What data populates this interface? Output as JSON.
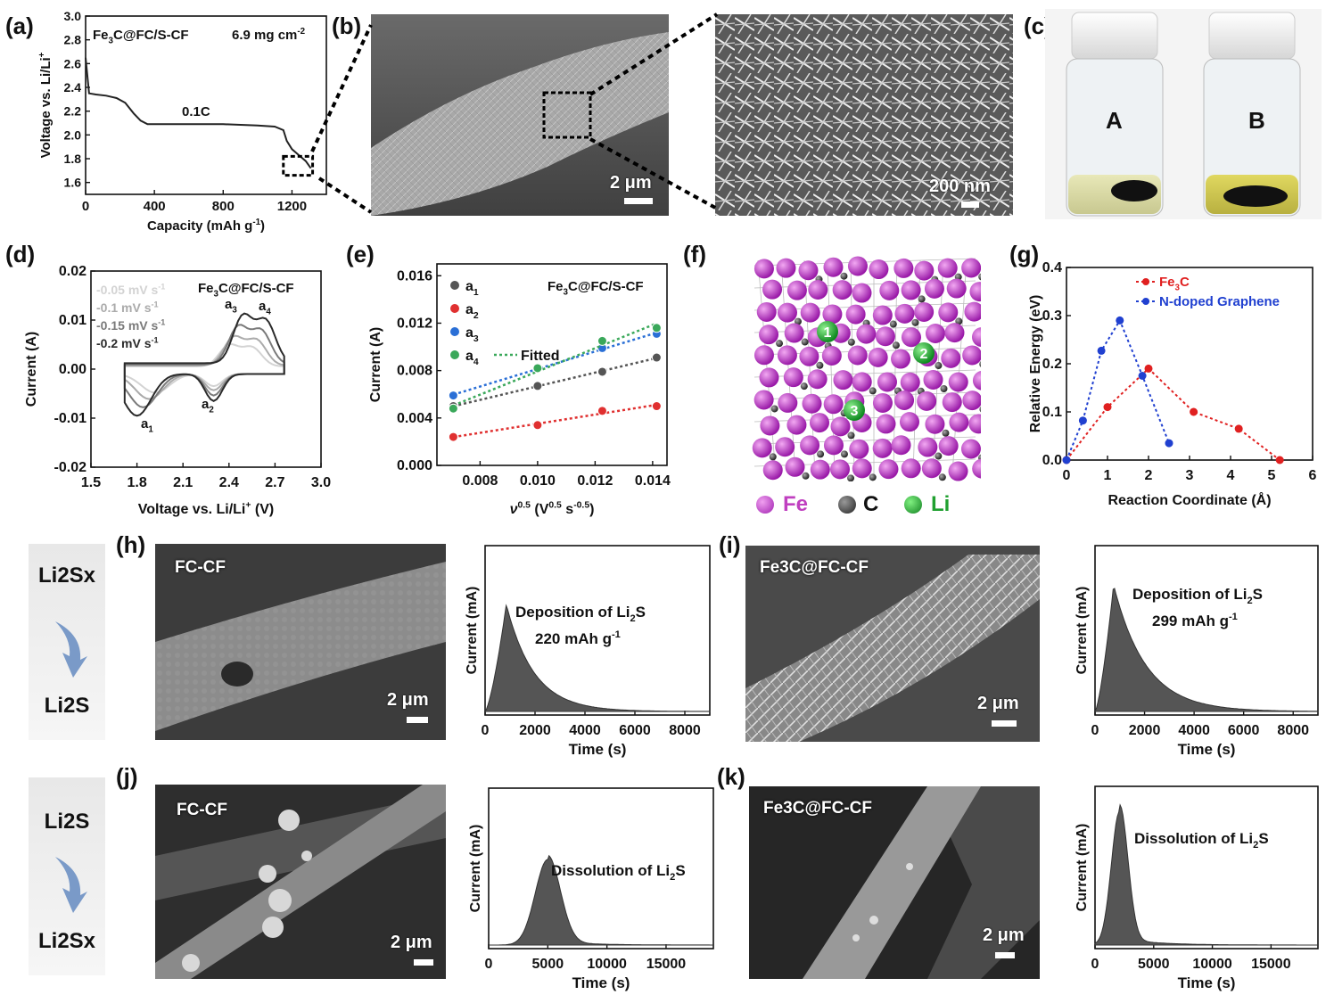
{
  "panels": {
    "a": "(a)",
    "b": "(b)",
    "c": "(c)",
    "d": "(d)",
    "e": "(e)",
    "f": "(f)",
    "g": "(g)",
    "h": "(h)",
    "i": "(i)",
    "j": "(j)",
    "k": "(k)"
  },
  "chart_data": [
    {
      "id": "a",
      "type": "line",
      "title": "Fe3C@FC/S-CF",
      "loading": "6.9 mg cm-2",
      "annotation": "0.1C",
      "xlabel": "Capacity (mAh g-1)",
      "ylabel": "Voltage vs. Li/Li+",
      "xlim": [
        0,
        1400
      ],
      "ylim": [
        1.5,
        3.0
      ],
      "xticks": [
        "0",
        "400",
        "800",
        "1200"
      ],
      "yticks": [
        "1.6",
        "1.8",
        "2.0",
        "2.2",
        "2.4",
        "2.6",
        "2.8",
        "3.0"
      ],
      "x": [
        0,
        20,
        60,
        120,
        180,
        230,
        280,
        320,
        360,
        400,
        600,
        800,
        1000,
        1100,
        1150,
        1170,
        1200,
        1240,
        1280,
        1310
      ],
      "y": [
        2.65,
        2.35,
        2.34,
        2.33,
        2.31,
        2.27,
        2.18,
        2.12,
        2.09,
        2.09,
        2.09,
        2.09,
        2.08,
        2.07,
        2.04,
        1.95,
        1.88,
        1.83,
        1.78,
        1.72
      ]
    },
    {
      "id": "d",
      "type": "line",
      "title": "Fe3C@FC/S-CF",
      "xlabel": "Voltage vs. Li/Li+ (V)",
      "ylabel": "Current (A)",
      "xlim": [
        1.5,
        3.0
      ],
      "ylim": [
        -0.02,
        0.02
      ],
      "xticks": [
        "1.5",
        "1.8",
        "2.1",
        "2.4",
        "2.7",
        "3.0"
      ],
      "yticks": [
        "-0.02",
        "-0.01",
        "0.00",
        "0.01",
        "0.02"
      ],
      "series": [
        {
          "name": "0.05 mV s-1",
          "color": "#d3d3d3"
        },
        {
          "name": "0.1 mV s-1",
          "color": "#ababab"
        },
        {
          "name": "0.15 mV s-1",
          "color": "#7a7a7a"
        },
        {
          "name": "0.2 mV s-1",
          "color": "#2a2a2a"
        }
      ],
      "peaks": [
        "a1",
        "a2",
        "a3",
        "a4"
      ]
    },
    {
      "id": "e",
      "type": "scatter",
      "title": "Fe3C@FC/S-CF",
      "fit_label": "Fitted",
      "xlabel": "v0.5 (V0.5 s-0.5)",
      "ylabel": "Current (A)",
      "xlim": [
        0.0065,
        0.0145
      ],
      "ylim": [
        0,
        0.017
      ],
      "xticks": [
        "0.008",
        "0.010",
        "0.012",
        "0.014"
      ],
      "yticks": [
        "0.000",
        "0.004",
        "0.008",
        "0.012",
        "0.016"
      ],
      "x": [
        0.00707,
        0.01,
        0.01225,
        0.01414
      ],
      "series": [
        {
          "name": "a1",
          "color": "#555555",
          "values": [
            0.005,
            0.0067,
            0.0079,
            0.0091
          ]
        },
        {
          "name": "a2",
          "color": "#e03030",
          "values": [
            0.0024,
            0.0034,
            0.0046,
            0.005
          ]
        },
        {
          "name": "a3",
          "color": "#2a6fd6",
          "values": [
            0.0059,
            0.0082,
            0.0099,
            0.0111
          ]
        },
        {
          "name": "a4",
          "color": "#3aa85a",
          "values": [
            0.0048,
            0.0082,
            0.0105,
            0.0116
          ]
        }
      ]
    },
    {
      "id": "g",
      "type": "line",
      "xlabel": "Reaction Coordinate (Å)",
      "ylabel": "Relative Energy (eV)",
      "xlim": [
        0,
        6
      ],
      "ylim": [
        0,
        0.4
      ],
      "xticks": [
        "0",
        "1",
        "2",
        "3",
        "4",
        "5",
        "6"
      ],
      "yticks": [
        "0.0",
        "0.1",
        "0.2",
        "0.3",
        "0.4"
      ],
      "series": [
        {
          "name": "Fe3C",
          "color": "#e02020",
          "x": [
            0,
            1,
            2,
            3.1,
            4.2,
            5.2
          ],
          "values": [
            0,
            0.11,
            0.19,
            0.1,
            0.065,
            0
          ]
        },
        {
          "name": "N-doped Graphene",
          "color": "#2040d0",
          "x": [
            0,
            0.4,
            0.85,
            1.3,
            1.85,
            2.5
          ],
          "values": [
            0,
            0.082,
            0.227,
            0.29,
            0.175,
            0.035
          ]
        }
      ]
    },
    {
      "id": "h",
      "type": "area",
      "annotation": "Deposition of Li2S",
      "capacity": "220 mAh g-1",
      "xlabel": "Time (s)",
      "ylabel": "Current (mA)",
      "xlim": [
        0,
        9000
      ],
      "xticks": [
        "0",
        "2000",
        "4000",
        "6000",
        "8000"
      ],
      "peak_x": 850
    },
    {
      "id": "i",
      "type": "area",
      "annotation": "Deposition of Li2S",
      "capacity": "299 mAh g-1",
      "xlabel": "Time (s)",
      "ylabel": "Current (mA)",
      "xlim": [
        0,
        9000
      ],
      "xticks": [
        "0",
        "2000",
        "4000",
        "6000",
        "8000"
      ],
      "peak_x": 750
    },
    {
      "id": "j",
      "type": "area",
      "annotation": "Dissolution of Li2S",
      "xlabel": "Time (s)",
      "ylabel": "Current (mA)",
      "xlim": [
        0,
        19000
      ],
      "xticks": [
        "0",
        "5000",
        "10000",
        "15000"
      ],
      "peak_x": 5000
    },
    {
      "id": "k",
      "type": "area",
      "annotation": "Dissolution of Li2S",
      "xlabel": "Time (s)",
      "ylabel": "Current (mA)",
      "xlim": [
        0,
        19000
      ],
      "xticks": [
        "0",
        "5000",
        "10000",
        "15000"
      ],
      "peak_x": 2100
    }
  ],
  "sem": {
    "b_scale": "2 μm",
    "b2_scale": "200 nm",
    "h_label": "FC-CF",
    "h_scale": "2 μm",
    "i_label": "Fe3C@FC-CF",
    "i_scale": "2 μm",
    "j_label": "FC-CF",
    "j_scale": "2 μm",
    "k_label": "Fe3C@FC-CF",
    "k_scale": "2 μm"
  },
  "vials": {
    "a": "A",
    "b": "B"
  },
  "structure_legend": {
    "fe": "Fe",
    "c": "C",
    "li": "Li",
    "sites": [
      "1",
      "2",
      "3"
    ]
  },
  "flow": {
    "top_from": "Li2Sx",
    "top_to": "Li2S",
    "bottom_from": "Li2S",
    "bottom_to": "Li2Sx"
  }
}
